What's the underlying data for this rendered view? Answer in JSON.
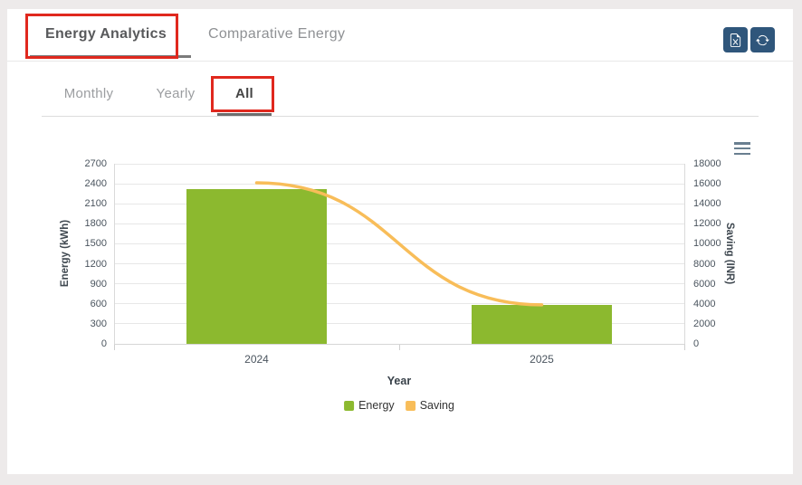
{
  "header": {
    "tabs": [
      {
        "label": "Energy Analytics",
        "active": true
      },
      {
        "label": "Comparative Energy",
        "active": false
      }
    ],
    "buttons": [
      {
        "icon": "file-excel-icon"
      },
      {
        "icon": "refresh-icon"
      }
    ]
  },
  "subtabs": [
    {
      "label": "Monthly",
      "active": false
    },
    {
      "label": "Yearly",
      "active": false
    },
    {
      "label": "All",
      "active": true
    }
  ],
  "chart_data": {
    "type": "combo",
    "categories": [
      "2024",
      "2025"
    ],
    "series": [
      {
        "name": "Energy",
        "type": "bar",
        "axis": "left",
        "color": "#8cb92f",
        "values": [
          2320,
          580
        ]
      },
      {
        "name": "Saving",
        "type": "line",
        "axis": "right",
        "color": "#f8bd59",
        "values": [
          16100,
          3900
        ]
      }
    ],
    "xlabel": "Year",
    "left_axis": {
      "title": "Energy (kWh)",
      "min": 0,
      "max": 2700,
      "step": 300
    },
    "right_axis": {
      "title": "Saving (INR)",
      "min": 0,
      "max": 18000,
      "step": 2000
    },
    "grid": true,
    "legend_position": "bottom",
    "context_menu_icon": "hamburger-menu-icon"
  },
  "colors": {
    "accent_navy": "#2f567b",
    "annotation_red": "#e0281e",
    "bar_green": "#8cb92f",
    "line_yellow": "#f8bd59",
    "axis_text": "#4a545e",
    "grid_line": "#e7e7e7"
  }
}
